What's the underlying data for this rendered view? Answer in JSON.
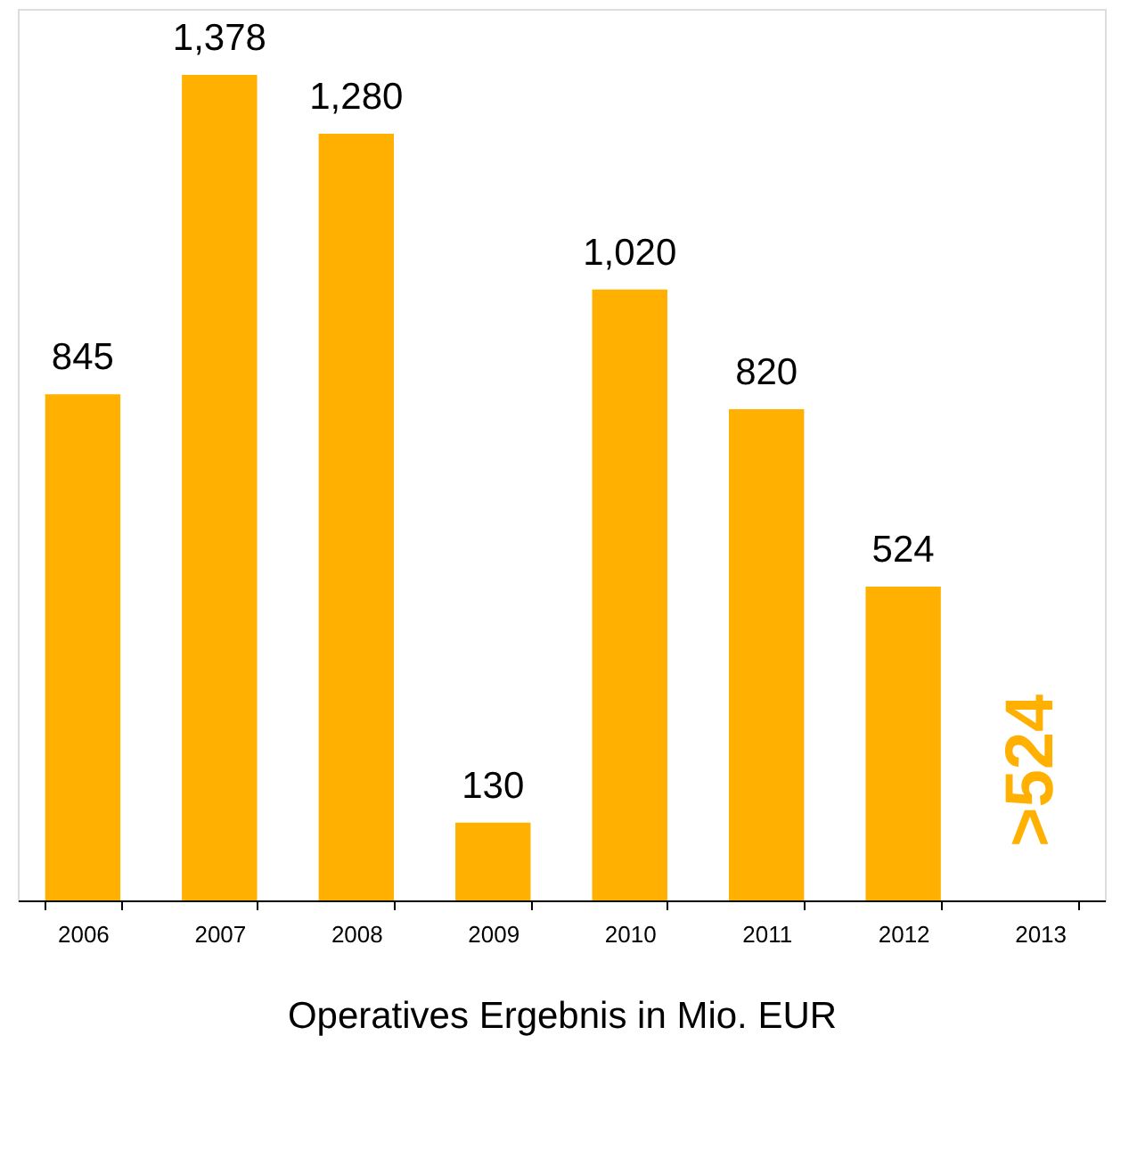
{
  "chart_data": {
    "type": "bar",
    "categories": [
      "2006",
      "2007",
      "2008",
      "2009",
      "2010",
      "2011",
      "2012",
      "2013"
    ],
    "values": [
      845,
      1378,
      1280,
      130,
      1020,
      820,
      524,
      null
    ],
    "value_labels": [
      "845",
      "1,378",
      "1,280",
      "130",
      "1,020",
      "820",
      "524",
      null
    ],
    "color": "#ffb000",
    "xlabel": "Operatives Ergebnis in Mio. EUR",
    "annotations": [
      ">524"
    ],
    "grid": false
  }
}
